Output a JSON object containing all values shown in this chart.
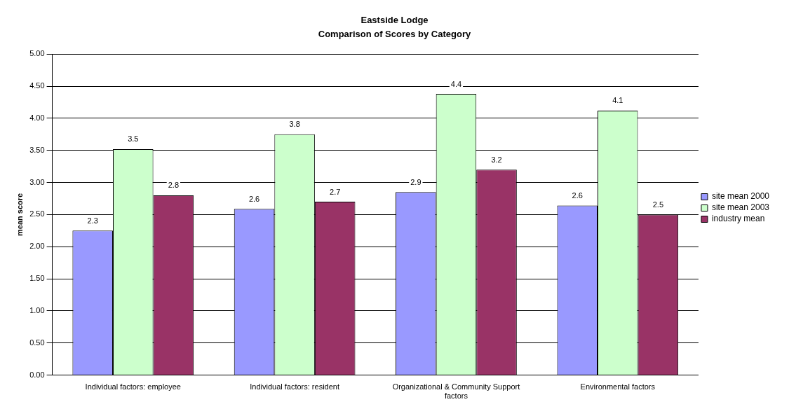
{
  "chart_data": {
    "type": "bar",
    "title": "Eastside Lodge",
    "subtitle": "Comparison of Scores by Category",
    "ylabel": "mean score",
    "categories": [
      "Individual factors: employee",
      "Individual factors: resident",
      "Organizational & Community Support factors",
      "Environmental factors"
    ],
    "series": [
      {
        "name": "site mean 2000",
        "color": "#9999ff",
        "values": [
          2.25,
          2.59,
          2.85,
          2.64
        ],
        "value_labels": [
          "2.3",
          "2.6",
          "2.9",
          "2.6"
        ]
      },
      {
        "name": "site mean 2003",
        "color": "#ccffcc",
        "values": [
          3.52,
          3.75,
          4.38,
          4.12
        ],
        "value_labels": [
          "3.5",
          "3.8",
          "4.4",
          "4.1"
        ]
      },
      {
        "name": "industry mean",
        "color": "#993366",
        "values": [
          2.8,
          2.7,
          3.2,
          2.5
        ],
        "value_labels": [
          "2.8",
          "2.7",
          "3.2",
          "2.5"
        ]
      }
    ],
    "ylim": [
      0,
      5
    ],
    "yticks": [
      {
        "value": 0,
        "label": "0.00"
      },
      {
        "value": 0.5,
        "label": "0.50"
      },
      {
        "value": 1,
        "label": "1.00"
      },
      {
        "value": 1.5,
        "label": "1.50"
      },
      {
        "value": 2,
        "label": "2.00"
      },
      {
        "value": 2.5,
        "label": "2.50"
      },
      {
        "value": 3,
        "label": "3.00"
      },
      {
        "value": 3.5,
        "label": "3.50"
      },
      {
        "value": 4,
        "label": "4.00"
      },
      {
        "value": 4.5,
        "label": "4.50"
      },
      {
        "value": 5,
        "label": "5.00"
      }
    ],
    "grid": "y",
    "legend": "right"
  }
}
